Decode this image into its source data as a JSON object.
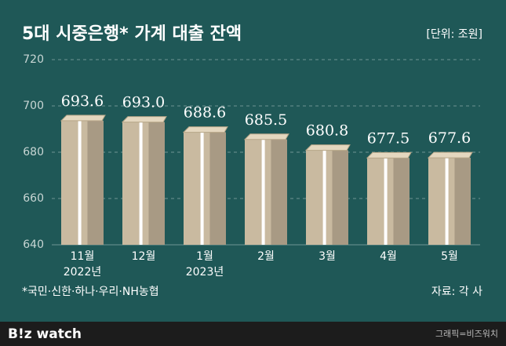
{
  "chart_data": {
    "type": "bar",
    "title": "5대 시중은행* 가계 대출 잔액",
    "unit": "[단위: 조원]",
    "categories": [
      "11월\n2022년",
      "12월",
      "1월\n2023년",
      "2월",
      "3월",
      "4월",
      "5월"
    ],
    "values": [
      693.6,
      693.0,
      688.6,
      685.5,
      680.8,
      677.5,
      677.6
    ],
    "value_labels": [
      "693.6",
      "693.0",
      "688.6",
      "685.5",
      "680.8",
      "677.5",
      "677.6"
    ],
    "color": "#c9baa0",
    "ylim": [
      640,
      720
    ],
    "yticks": [
      640,
      660,
      680,
      700,
      720
    ],
    "grid": true,
    "note": "*국민·신한·하나·우리·NH농협",
    "source": "자료: 각 사"
  },
  "footer": {
    "logo": "B!z watch",
    "credit": "그래픽=비즈워치"
  }
}
